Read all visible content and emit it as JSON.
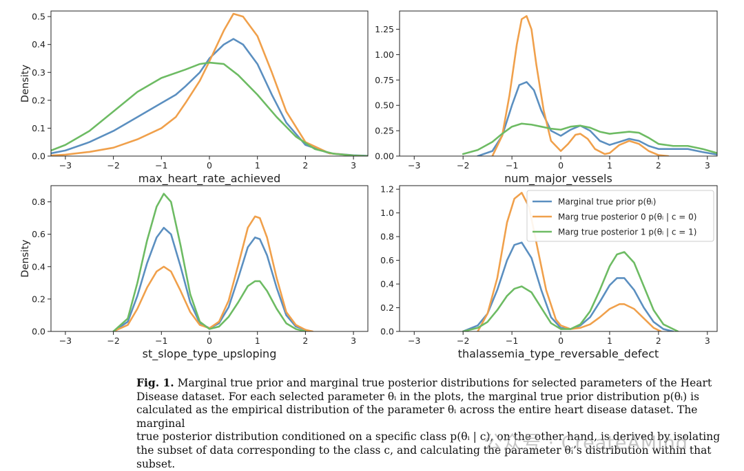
{
  "chart_data": [
    {
      "type": "line",
      "xlabel": "max_heart_rate_achieved",
      "ylabel": "Density",
      "xlim": [
        -3.3,
        3.3
      ],
      "ylim": [
        0,
        0.52
      ],
      "xticks": [
        -3,
        -2,
        -1,
        0,
        1,
        2,
        3
      ],
      "yticks": [
        0.0,
        0.1,
        0.2,
        0.3,
        0.4,
        0.5
      ],
      "ytick_labels": [
        "0.0",
        "0.1",
        "0.2",
        "0.3",
        "0.4",
        "0.5"
      ],
      "grid": false,
      "series": [
        {
          "color": "#5b8fc0",
          "x": [
            -3.3,
            -3,
            -2.5,
            -2,
            -1.5,
            -1,
            -0.7,
            -0.5,
            -0.2,
            0,
            0.3,
            0.5,
            0.7,
            1,
            1.3,
            1.6,
            2,
            2.5,
            3,
            3.3
          ],
          "y": [
            0.01,
            0.02,
            0.05,
            0.09,
            0.14,
            0.19,
            0.22,
            0.25,
            0.3,
            0.35,
            0.4,
            0.42,
            0.4,
            0.33,
            0.22,
            0.12,
            0.04,
            0.01,
            0.003,
            0.001
          ]
        },
        {
          "color": "#f0a04b",
          "x": [
            -3.3,
            -3,
            -2.5,
            -2,
            -1.5,
            -1,
            -0.7,
            -0.5,
            -0.2,
            0,
            0.3,
            0.5,
            0.7,
            1,
            1.3,
            1.6,
            2,
            2.5,
            3,
            3.3
          ],
          "y": [
            0.002,
            0.005,
            0.015,
            0.03,
            0.06,
            0.1,
            0.14,
            0.19,
            0.27,
            0.34,
            0.45,
            0.51,
            0.5,
            0.43,
            0.3,
            0.16,
            0.05,
            0.01,
            0.002,
            0.0
          ]
        },
        {
          "color": "#6dbb63",
          "x": [
            -3.3,
            -3,
            -2.5,
            -2,
            -1.5,
            -1,
            -0.5,
            -0.2,
            0,
            0.3,
            0.6,
            1,
            1.4,
            1.8,
            2.2,
            2.6,
            3,
            3.3
          ],
          "y": [
            0.02,
            0.04,
            0.09,
            0.16,
            0.23,
            0.28,
            0.31,
            0.33,
            0.335,
            0.33,
            0.29,
            0.22,
            0.14,
            0.07,
            0.025,
            0.008,
            0.002,
            0.0
          ]
        }
      ]
    },
    {
      "type": "line",
      "xlabel": "num_major_vessels",
      "ylabel": "",
      "xlim": [
        -3.3,
        3.2
      ],
      "ylim": [
        0,
        1.43
      ],
      "xticks": [
        -3,
        -2,
        -1,
        0,
        1,
        2,
        3
      ],
      "yticks": [
        0.0,
        0.25,
        0.5,
        0.75,
        1.0,
        1.25
      ],
      "ytick_labels": [
        "0.00",
        "0.25",
        "0.50",
        "0.75",
        "1.00",
        "1.25"
      ],
      "grid": false,
      "series": [
        {
          "color": "#5b8fc0",
          "x": [
            -1.7,
            -1.4,
            -1.2,
            -1,
            -0.85,
            -0.7,
            -0.55,
            -0.4,
            -0.2,
            0,
            0.2,
            0.4,
            0.6,
            0.8,
            1,
            1.2,
            1.4,
            1.6,
            1.8,
            2,
            2.3,
            2.6,
            2.9,
            3.2
          ],
          "y": [
            0.0,
            0.05,
            0.2,
            0.5,
            0.7,
            0.73,
            0.65,
            0.45,
            0.25,
            0.2,
            0.26,
            0.3,
            0.25,
            0.15,
            0.11,
            0.14,
            0.17,
            0.15,
            0.1,
            0.07,
            0.07,
            0.07,
            0.04,
            0.015
          ]
        },
        {
          "color": "#f0a04b",
          "x": [
            -1.4,
            -1.2,
            -1.05,
            -0.9,
            -0.8,
            -0.7,
            -0.6,
            -0.5,
            -0.35,
            -0.2,
            0,
            0.15,
            0.3,
            0.4,
            0.55,
            0.7,
            0.9,
            1,
            1.2,
            1.4,
            1.6,
            1.8,
            2,
            2.2
          ],
          "y": [
            0.0,
            0.2,
            0.6,
            1.1,
            1.35,
            1.38,
            1.25,
            0.9,
            0.45,
            0.15,
            0.05,
            0.12,
            0.21,
            0.22,
            0.17,
            0.07,
            0.02,
            0.03,
            0.11,
            0.15,
            0.12,
            0.05,
            0.01,
            0.0
          ]
        },
        {
          "color": "#6dbb63",
          "x": [
            -2,
            -1.7,
            -1.4,
            -1.2,
            -1,
            -0.8,
            -0.6,
            -0.4,
            -0.2,
            0,
            0.2,
            0.4,
            0.6,
            0.8,
            1,
            1.2,
            1.4,
            1.6,
            1.8,
            2,
            2.3,
            2.6,
            2.9,
            3.2
          ],
          "y": [
            0.02,
            0.06,
            0.14,
            0.22,
            0.29,
            0.32,
            0.31,
            0.29,
            0.27,
            0.26,
            0.29,
            0.3,
            0.28,
            0.24,
            0.22,
            0.23,
            0.24,
            0.23,
            0.18,
            0.12,
            0.1,
            0.1,
            0.07,
            0.03
          ]
        }
      ]
    },
    {
      "type": "line",
      "xlabel": "st_slope_type_upsloping",
      "ylabel": "Density",
      "xlim": [
        -3.3,
        3.3
      ],
      "ylim": [
        0,
        0.9
      ],
      "xticks": [
        -3,
        -2,
        -1,
        0,
        1,
        2,
        3
      ],
      "yticks": [
        0.0,
        0.2,
        0.4,
        0.6,
        0.8
      ],
      "ytick_labels": [
        "0.0",
        "0.2",
        "0.4",
        "0.6",
        "0.8"
      ],
      "grid": false,
      "series": [
        {
          "color": "#5b8fc0",
          "x": [
            -2,
            -1.7,
            -1.5,
            -1.3,
            -1.1,
            -0.95,
            -0.8,
            -0.6,
            -0.4,
            -0.2,
            0,
            0.2,
            0.4,
            0.6,
            0.8,
            0.95,
            1.05,
            1.2,
            1.4,
            1.6,
            1.8,
            2,
            2.1
          ],
          "y": [
            0.0,
            0.06,
            0.22,
            0.42,
            0.58,
            0.64,
            0.6,
            0.4,
            0.18,
            0.05,
            0.02,
            0.05,
            0.15,
            0.33,
            0.52,
            0.58,
            0.57,
            0.47,
            0.27,
            0.1,
            0.03,
            0.01,
            0.0
          ]
        },
        {
          "color": "#f0a04b",
          "x": [
            -2,
            -1.7,
            -1.5,
            -1.3,
            -1.1,
            -0.95,
            -0.8,
            -0.6,
            -0.4,
            -0.2,
            0,
            0.2,
            0.4,
            0.6,
            0.8,
            0.95,
            1.05,
            1.2,
            1.4,
            1.6,
            1.8,
            2,
            2.15
          ],
          "y": [
            0.0,
            0.04,
            0.14,
            0.27,
            0.37,
            0.4,
            0.37,
            0.25,
            0.12,
            0.04,
            0.02,
            0.06,
            0.19,
            0.41,
            0.64,
            0.71,
            0.7,
            0.58,
            0.33,
            0.12,
            0.04,
            0.01,
            0.0
          ]
        },
        {
          "color": "#6dbb63",
          "x": [
            -2,
            -1.7,
            -1.5,
            -1.3,
            -1.1,
            -0.95,
            -0.8,
            -0.6,
            -0.4,
            -0.2,
            0,
            0.2,
            0.4,
            0.6,
            0.8,
            0.95,
            1.05,
            1.2,
            1.4,
            1.6,
            1.8,
            2
          ],
          "y": [
            0.0,
            0.08,
            0.3,
            0.56,
            0.77,
            0.85,
            0.8,
            0.53,
            0.23,
            0.06,
            0.015,
            0.03,
            0.09,
            0.18,
            0.28,
            0.31,
            0.31,
            0.25,
            0.14,
            0.05,
            0.015,
            0.0
          ]
        }
      ]
    },
    {
      "type": "line",
      "xlabel": "thalassemia_type_reversable_defect",
      "ylabel": "",
      "xlim": [
        -3.3,
        3.2
      ],
      "ylim": [
        0,
        1.23
      ],
      "xticks": [
        -3,
        -2,
        -1,
        0,
        1,
        2,
        3
      ],
      "yticks": [
        0.0,
        0.2,
        0.4,
        0.6,
        0.8,
        1.0,
        1.2
      ],
      "ytick_labels": [
        "0.0",
        "0.2",
        "0.4",
        "0.6",
        "0.8",
        "1.0",
        "1.2"
      ],
      "grid": false,
      "legend": {
        "placement": "top-right",
        "entries": [
          {
            "label": "Marginal true prior p(θᵢ)",
            "color": "#5b8fc0"
          },
          {
            "label": "Marg true posterior 0 p(θᵢ | c = 0)",
            "color": "#f0a04b"
          },
          {
            "label": "Marg true posterior 1 p(θᵢ | c = 1)",
            "color": "#6dbb63"
          }
        ]
      },
      "series": [
        {
          "color": "#5b8fc0",
          "x": [
            -2,
            -1.7,
            -1.5,
            -1.3,
            -1.1,
            -0.95,
            -0.8,
            -0.6,
            -0.4,
            -0.2,
            0,
            0.2,
            0.4,
            0.6,
            0.8,
            1,
            1.15,
            1.3,
            1.5,
            1.7,
            1.9,
            2.1,
            2.3
          ],
          "y": [
            0.0,
            0.05,
            0.15,
            0.35,
            0.6,
            0.73,
            0.75,
            0.62,
            0.35,
            0.12,
            0.03,
            0.02,
            0.05,
            0.12,
            0.25,
            0.39,
            0.45,
            0.45,
            0.35,
            0.2,
            0.08,
            0.02,
            0.0
          ]
        },
        {
          "color": "#f0a04b",
          "x": [
            -1.7,
            -1.5,
            -1.3,
            -1.1,
            -0.95,
            -0.8,
            -0.65,
            -0.5,
            -0.3,
            -0.1,
            0,
            0.2,
            0.4,
            0.6,
            0.8,
            1,
            1.2,
            1.3,
            1.5,
            1.7,
            1.9,
            2.05
          ],
          "y": [
            0.0,
            0.15,
            0.45,
            0.92,
            1.12,
            1.17,
            1.05,
            0.75,
            0.35,
            0.1,
            0.05,
            0.02,
            0.03,
            0.06,
            0.12,
            0.19,
            0.23,
            0.23,
            0.19,
            0.11,
            0.03,
            0.0
          ]
        },
        {
          "color": "#6dbb63",
          "x": [
            -2,
            -1.7,
            -1.5,
            -1.3,
            -1.1,
            -0.95,
            -0.8,
            -0.6,
            -0.4,
            -0.2,
            0,
            0.2,
            0.4,
            0.6,
            0.8,
            1,
            1.15,
            1.3,
            1.5,
            1.7,
            1.9,
            2.1,
            2.4
          ],
          "y": [
            0.0,
            0.03,
            0.08,
            0.18,
            0.3,
            0.36,
            0.38,
            0.33,
            0.2,
            0.07,
            0.02,
            0.02,
            0.06,
            0.17,
            0.35,
            0.55,
            0.65,
            0.67,
            0.58,
            0.38,
            0.18,
            0.06,
            0.0
          ]
        }
      ]
    }
  ],
  "caption": {
    "fig_label": "Fig. 1.",
    "lines": [
      " Marginal true prior and marginal true posterior distributions for selected parameters of the Heart",
      "Disease dataset. For each selected parameter θᵢ in the plots, the marginal true prior distribution p(θᵢ) is",
      "calculated as the empirical distribution of the parameter θᵢ across the entire heart disease dataset. The marginal",
      "true posterior distribution conditioned on a specific class p(θᵢ | c), on the other hand, is derived by isolating",
      "the subset of data corresponding to the class c, and calculating the parameter θᵢ’s distribution within that",
      "subset."
    ]
  },
  "watermark": "公众号 · CreateAMind"
}
